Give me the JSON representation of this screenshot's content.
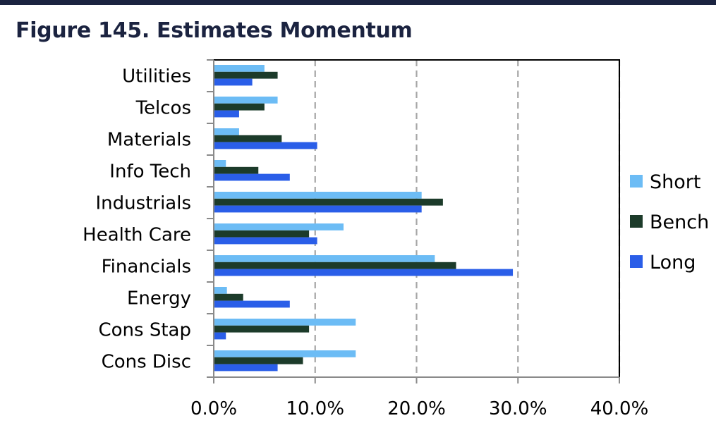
{
  "figure_title": "Figure 145. Estimates Momentum",
  "chart_data": {
    "type": "bar",
    "orientation": "horizontal",
    "categories": [
      "Utilities",
      "Telcos",
      "Materials",
      "Info Tech",
      "Industrials",
      "Health Care",
      "Financials",
      "Energy",
      "Cons Stap",
      "Cons Disc"
    ],
    "series": [
      {
        "name": "Short",
        "color": "#6cbcf5",
        "values": [
          5.0,
          6.3,
          2.5,
          1.2,
          20.5,
          12.8,
          21.8,
          1.3,
          14.0,
          14.0
        ]
      },
      {
        "name": "Bench",
        "color": "#1c3b2a",
        "values": [
          6.3,
          5.0,
          6.7,
          4.4,
          22.6,
          9.4,
          23.9,
          2.9,
          9.4,
          8.8
        ]
      },
      {
        "name": "Long",
        "color": "#2a5ee8",
        "values": [
          3.8,
          2.5,
          10.2,
          7.5,
          20.5,
          10.2,
          29.5,
          7.5,
          1.2,
          6.3
        ]
      }
    ],
    "x_ticks": [
      "0.0%",
      "10.0%",
      "20.0%",
      "30.0%",
      "40.0%"
    ],
    "xlim": [
      0,
      40
    ],
    "grid": "vertical dashed",
    "legend": "right"
  }
}
